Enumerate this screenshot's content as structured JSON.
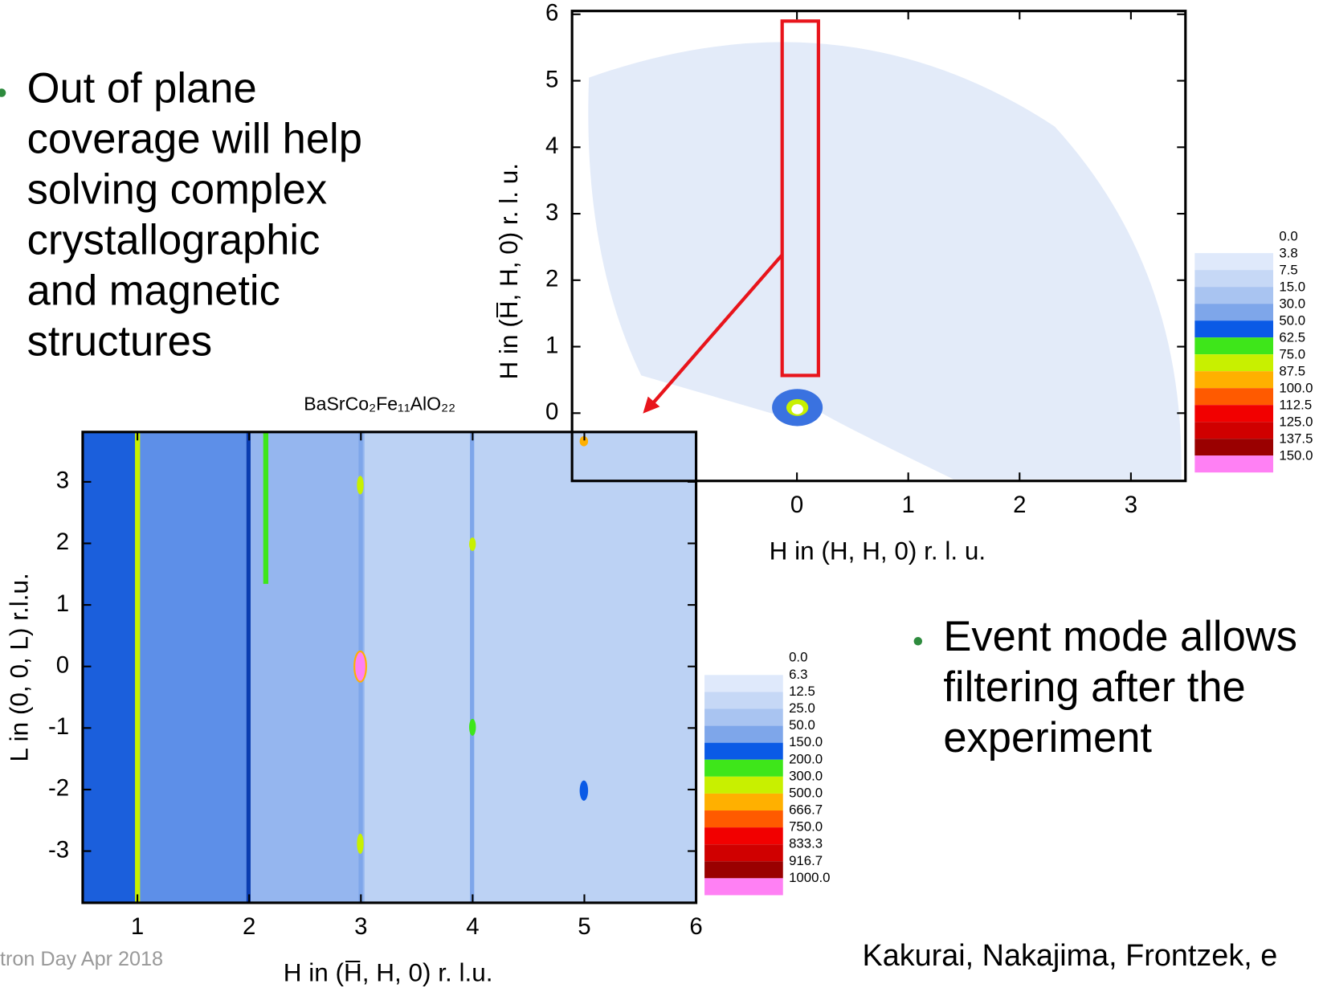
{
  "slide": {
    "bullets": [
      {
        "lines": [
          "Out of plane",
          "coverage will help",
          "solving complex",
          "crystallographic",
          "and magnetic",
          "structures"
        ]
      },
      {
        "lines": [
          "Event mode allows",
          "filtering after the",
          "experiment"
        ]
      }
    ],
    "footer": "tron Day Apr 2018",
    "citation": "Kakurai, Nakajima, Frontzek, e"
  },
  "chart_data": [
    {
      "type": "heatmap",
      "xlabel": "H in (H, H, 0) r. l. u.",
      "ylabel": "H in (H̅, H, 0) r. l. u.",
      "xlim": [
        -2.02,
        3.49
      ],
      "ylim": [
        -1.02,
        6.05
      ],
      "xticks": [
        0,
        1,
        2,
        3
      ],
      "yticks": [
        0,
        1,
        2,
        3,
        4,
        5,
        6
      ],
      "colorbar": {
        "ticks": [
          {
            "value": 0,
            "label": "0.0"
          },
          3.8,
          7.5,
          {
            "value": 15,
            "label": "15.0"
          },
          {
            "value": 30,
            "label": "30.0"
          },
          {
            "value": 50,
            "label": "50.0"
          },
          62.5,
          {
            "value": 75,
            "label": "75.0"
          },
          87.5,
          {
            "value": 100,
            "label": "100.0"
          },
          112.5,
          {
            "value": 125,
            "label": "125.0"
          },
          137.5,
          {
            "value": 150,
            "label": "150.0"
          }
        ],
        "colors": [
          "#dfe9fb",
          "#c6d8f6",
          "#a9c4f1",
          "#7ea6ea",
          "#0a5ae6",
          "#3ee61a",
          "#c8f000",
          "#ffb000",
          "#ff5a00",
          "#f20000",
          "#d00000",
          "#9a0000",
          "#ff80f4"
        ]
      }
    },
    {
      "type": "heatmap",
      "title": "BaSrCo₂Fe₁₁AlO₂₂",
      "xlabel": "H in (H̅, H, 0) r. l.u.",
      "ylabel": "L in (0, 0, L) r.l.u.",
      "xlim": [
        0.51,
        6.0
      ],
      "ylim": [
        -3.84,
        3.81
      ],
      "xticks": [
        1,
        2,
        3,
        4,
        5,
        6
      ],
      "yticks": [
        -3,
        -2,
        -1,
        0,
        1,
        2,
        3
      ],
      "colorbar": {
        "ticks": [
          {
            "value": 0,
            "label": "0.0"
          },
          6.3,
          12.5,
          {
            "value": 25,
            "label": "25.0"
          },
          {
            "value": 50,
            "label": "50.0"
          },
          {
            "value": 150,
            "label": "150.0"
          },
          {
            "value": 200,
            "label": "200.0"
          },
          {
            "value": 300,
            "label": "300.0"
          },
          {
            "value": 500,
            "label": "500.0"
          },
          666.7,
          {
            "value": 750,
            "label": "750.0"
          },
          833.3,
          916.7,
          {
            "value": 1000,
            "label": "1000.0"
          }
        ],
        "colors": [
          "#dfe9fb",
          "#c6d8f6",
          "#a9c4f1",
          "#7ea6ea",
          "#0a5ae6",
          "#3ee61a",
          "#c8f000",
          "#ffb000",
          "#ff5a00",
          "#f20000",
          "#d00000",
          "#9a0000",
          "#ff80f4"
        ]
      }
    }
  ]
}
